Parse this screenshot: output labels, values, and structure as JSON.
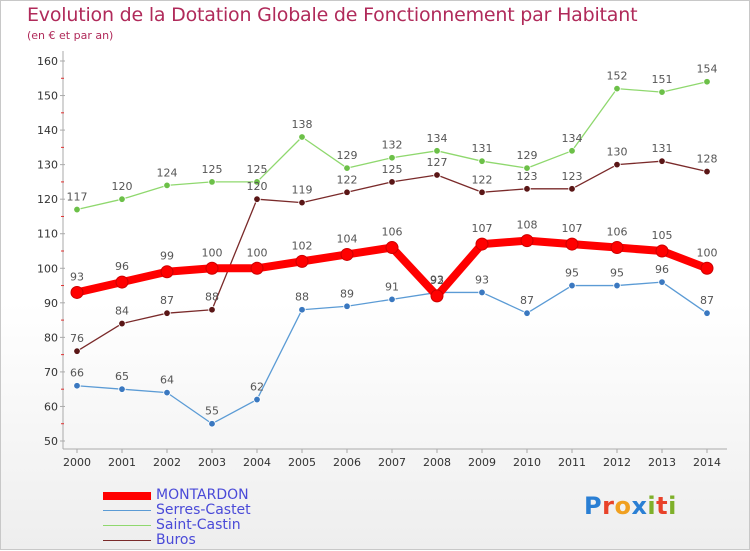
{
  "title": "Evolution de la Dotation Globale de Fonctionnement par Habitant",
  "subtitle": "(en € et par an)",
  "brand": {
    "text": "Proxiti",
    "colors": [
      "#2a7fd4",
      "#e8422a",
      "#f0a020",
      "#2a7fd4",
      "#7fb02a",
      "#e8422a",
      "#7fb02a"
    ]
  },
  "chart_data": {
    "type": "line",
    "title": "Evolution de la Dotation Globale de Fonctionnement par Habitant",
    "subtitle": "(en € et par an)",
    "xlabel": "",
    "ylabel": "",
    "x": [
      "2000",
      "2001",
      "2002",
      "2003",
      "2004",
      "2005",
      "2006",
      "2007",
      "2008",
      "2009",
      "2010",
      "2011",
      "2012",
      "2013",
      "2014"
    ],
    "ylim": [
      50,
      160
    ],
    "yticks": [
      50,
      60,
      70,
      80,
      90,
      100,
      110,
      120,
      130,
      140,
      150,
      160
    ],
    "grid": false,
    "legend_position": "bottom-left",
    "series": [
      {
        "name": "MONTARDON",
        "color": "#ff0000",
        "marker": "#cc0000",
        "emphasis": true,
        "values": [
          93,
          96,
          99,
          100,
          100,
          102,
          104,
          106,
          92,
          107,
          108,
          107,
          106,
          105,
          100
        ],
        "labels": [
          "93",
          "96",
          "99",
          "100",
          "100",
          "102",
          "104",
          "106",
          "92",
          "107",
          "108",
          "107",
          "106",
          "105",
          "100"
        ]
      },
      {
        "name": "Serres-Castet",
        "color": "#5b9bd5",
        "marker": "#3a78c0",
        "emphasis": false,
        "values": [
          66,
          65,
          64,
          55,
          62,
          88,
          89,
          91,
          93,
          93,
          87,
          95,
          95,
          96,
          87
        ],
        "labels": [
          "66",
          "65",
          "64",
          "55",
          "62",
          "88",
          "89",
          "91",
          "93",
          "93",
          "87",
          "95",
          "95",
          "96",
          "87"
        ]
      },
      {
        "name": "Saint-Castin",
        "color": "#8fd86e",
        "marker": "#6cc048",
        "emphasis": false,
        "values": [
          117,
          120,
          124,
          125,
          125,
          138,
          129,
          132,
          134,
          131,
          129,
          134,
          152,
          151,
          154
        ],
        "labels": [
          "117",
          "120",
          "124",
          "125",
          "125",
          "138",
          "129",
          "132",
          "134",
          "131",
          "129",
          "134",
          "152",
          "151",
          "154"
        ]
      },
      {
        "name": "Buros",
        "color": "#7a2a2a",
        "marker": "#5a1616",
        "emphasis": false,
        "values": [
          76,
          84,
          87,
          88,
          120,
          119,
          122,
          125,
          127,
          122,
          123,
          123,
          130,
          131,
          128
        ],
        "labels": [
          "76",
          "84",
          "87",
          "88",
          "120",
          "119",
          "122",
          "125",
          "127",
          "122",
          "123",
          "123",
          "130",
          "131",
          "128"
        ]
      }
    ]
  }
}
